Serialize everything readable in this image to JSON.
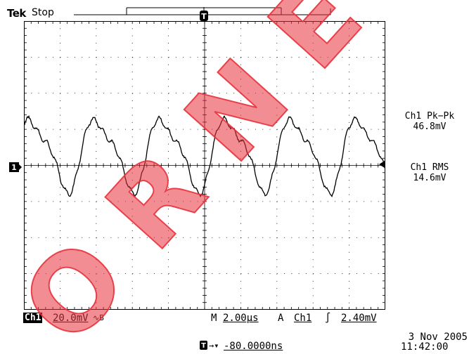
{
  "header": {
    "brand": "Tek",
    "run_state": "Stop"
  },
  "measurements": [
    {
      "label": "Ch1 Pk−Pk",
      "value": "46.8mV"
    },
    {
      "label": "Ch1 RMS",
      "value": "14.6mV"
    }
  ],
  "markers": {
    "channel_marker": "1",
    "trigger_marker": "T"
  },
  "status_bar": {
    "channel": "Ch1",
    "volts_per_div": "20.0mV",
    "bandwidth_symbol": "∿B",
    "timebase_prefix": "M",
    "timebase": "2.00µs",
    "trigger_mode": "A",
    "trigger_source": "Ch1",
    "trigger_slope": "∫",
    "trigger_level": "2.40mV",
    "trigger_offset": "-80.0000ns",
    "date": "3 Nov 2005",
    "time": "11:42:00"
  },
  "colors": {
    "background": "#ffffff",
    "trace": "#000000",
    "watermark": "#e8323c"
  }
}
